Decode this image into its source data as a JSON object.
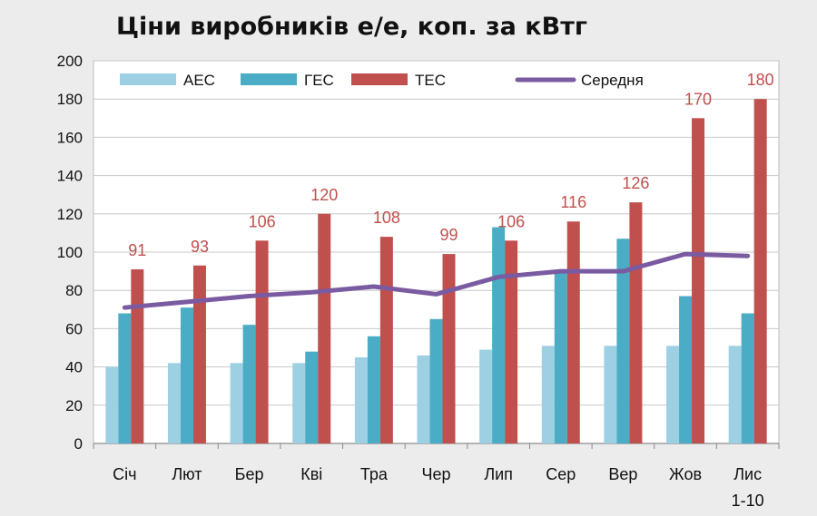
{
  "chart_data": {
    "type": "bar",
    "title": "Ціни виробників е/е, коп. за кВтг",
    "xlabel": "",
    "ylabel": "",
    "ylim": [
      0,
      200
    ],
    "yticks": [
      0,
      20,
      40,
      60,
      80,
      100,
      120,
      140,
      160,
      180,
      200
    ],
    "grid": true,
    "legend_position": "top",
    "categories": [
      "Січ",
      "Лют",
      "Бер",
      "Кві",
      "Тра",
      "Чер",
      "Лип",
      "Сер",
      "Вер",
      "Жов",
      "Лис\n1-10"
    ],
    "series": [
      {
        "name": "АЕС",
        "kind": "bar",
        "color": "#9dd0e3",
        "values": [
          40,
          42,
          42,
          42,
          45,
          46,
          49,
          51,
          51,
          51,
          51
        ]
      },
      {
        "name": "ГЕС",
        "kind": "bar",
        "color": "#4aacc5",
        "values": [
          68,
          71,
          62,
          48,
          56,
          65,
          113,
          89,
          107,
          77,
          68
        ]
      },
      {
        "name": "ТЕС",
        "kind": "bar",
        "color": "#c0504d",
        "label_color": "#c0504d",
        "values": [
          91,
          93,
          106,
          120,
          108,
          99,
          106,
          116,
          126,
          170,
          180
        ],
        "data_labels": [
          "91",
          "93",
          "106",
          "120",
          "108",
          "99",
          "106",
          "116",
          "126",
          "170",
          "180"
        ]
      },
      {
        "name": "Середня",
        "kind": "line",
        "color": "#7a5aa0",
        "values": [
          71,
          74,
          77,
          79,
          82,
          78,
          87,
          90,
          90,
          99,
          98
        ]
      }
    ]
  }
}
